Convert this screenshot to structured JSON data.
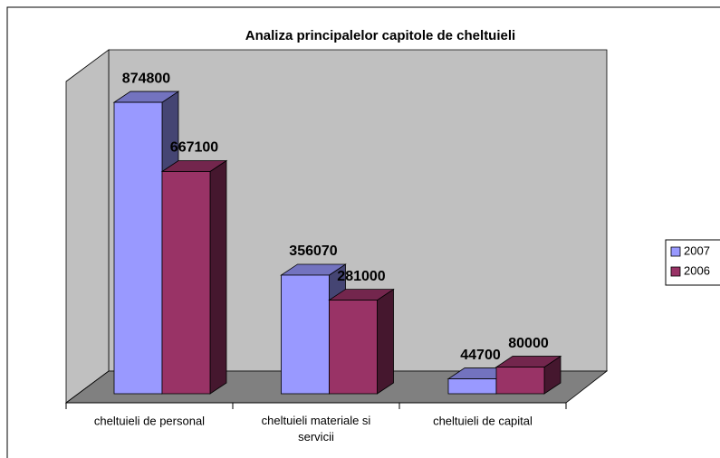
{
  "chart_data": {
    "type": "bar3d",
    "title": "Analiza principalelor capitole de cheltuieli",
    "categories": [
      "cheltuieli de personal",
      "cheltuieli materiale si servicii",
      "cheltuieli de capital"
    ],
    "series": [
      {
        "name": "2007",
        "color": "#9999ff",
        "values": [
          874800,
          356070,
          44700
        ]
      },
      {
        "name": "2006",
        "color": "#993366",
        "values": [
          667100,
          281000,
          80000
        ]
      }
    ],
    "ylim": [
      0,
      1000000
    ],
    "legend": "right"
  }
}
